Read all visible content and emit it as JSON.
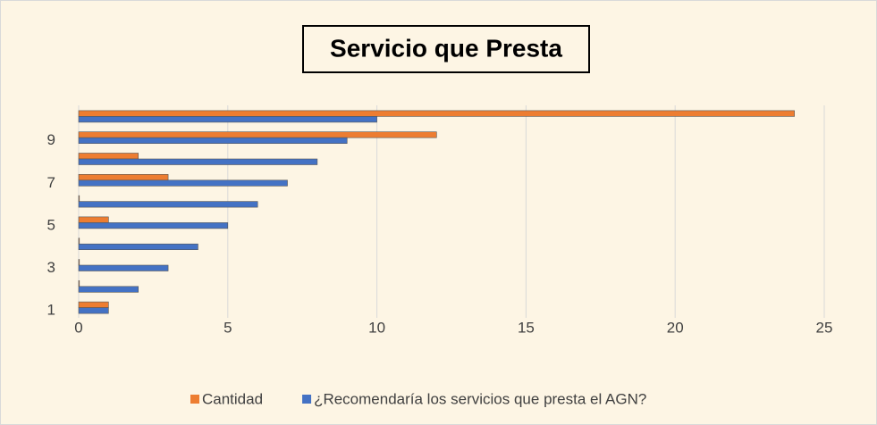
{
  "chart_data": {
    "type": "hbar",
    "title": "Servicio que Presta",
    "categories": [
      "1",
      null,
      "3",
      null,
      "5",
      null,
      "7",
      null,
      "9",
      null
    ],
    "series": [
      {
        "name": "Cantidad",
        "color": "#ed7d31",
        "values": [
          1,
          0,
          0,
          0,
          1,
          0,
          3,
          2,
          12,
          24
        ]
      },
      {
        "name": "¿Recomendaría los servicios que presta el AGN?",
        "color": "#4472c4",
        "values": [
          1,
          2,
          3,
          4,
          5,
          6,
          7,
          8,
          9,
          10
        ]
      }
    ],
    "xlim": [
      0,
      25
    ],
    "xticks": [
      0,
      5,
      10,
      15,
      20,
      25
    ],
    "grid": true,
    "legend": "bottom"
  }
}
